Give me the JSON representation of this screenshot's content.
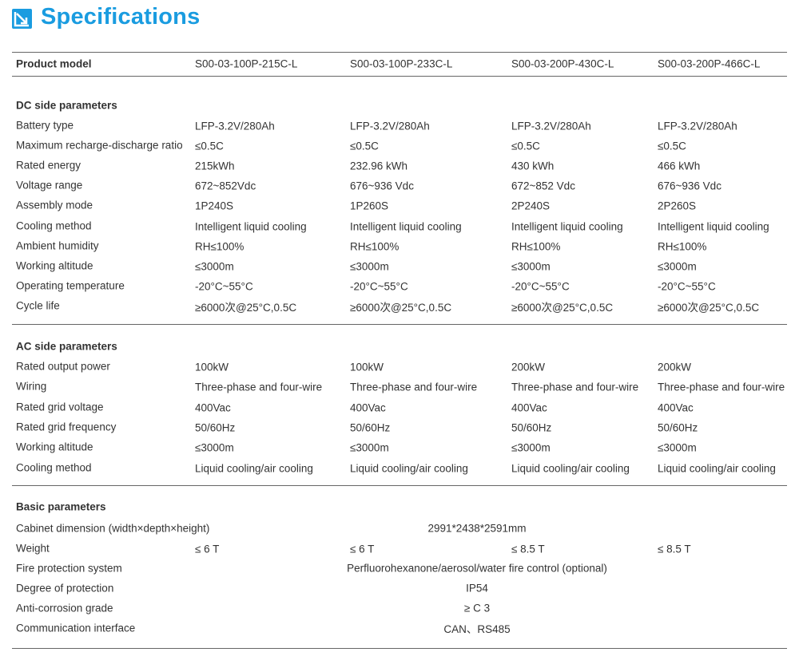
{
  "title": "Specifications",
  "accent_color": "#1a9ce0",
  "logo_icon": "arrow-down-right-icon",
  "header": {
    "label": "Product model",
    "models": [
      "S00-03-100P-215C-L",
      "S00-03-100P-233C-L",
      "S00-03-200P-430C-L",
      "S00-03-200P-466C-L"
    ]
  },
  "sections": [
    {
      "title": "DC side parameters",
      "rows": [
        {
          "label": "Battery type",
          "values": [
            "LFP-3.2V/280Ah",
            "LFP-3.2V/280Ah",
            "LFP-3.2V/280Ah",
            "LFP-3.2V/280Ah"
          ]
        },
        {
          "label": "Maximum recharge-discharge ratio",
          "values": [
            "≤0.5C",
            "≤0.5C",
            "≤0.5C",
            "≤0.5C"
          ]
        },
        {
          "label": "Rated energy",
          "values": [
            "215kWh",
            "232.96 kWh",
            "430 kWh",
            "466 kWh"
          ]
        },
        {
          "label": "Voltage range",
          "values": [
            "672~852Vdc",
            "676~936 Vdc",
            "672~852 Vdc",
            "676~936 Vdc"
          ]
        },
        {
          "label": "Assembly mode",
          "values": [
            "1P240S",
            "1P260S",
            "2P240S",
            "2P260S"
          ]
        },
        {
          "label": "Cooling method",
          "values": [
            "Intelligent liquid cooling",
            "Intelligent liquid cooling",
            "Intelligent liquid cooling",
            "Intelligent liquid cooling"
          ]
        },
        {
          "label": "Ambient humidity",
          "values": [
            "RH≤100%",
            "RH≤100%",
            "RH≤100%",
            "RH≤100%"
          ]
        },
        {
          "label": "Working altitude",
          "values": [
            "≤3000m",
            "≤3000m",
            "≤3000m",
            "≤3000m"
          ]
        },
        {
          "label": "Operating temperature",
          "values": [
            "-20°C~55°C",
            "-20°C~55°C",
            "-20°C~55°C",
            "-20°C~55°C"
          ]
        },
        {
          "label": "Cycle life",
          "values": [
            "≥6000次@25°C,0.5C",
            "≥6000次@25°C,0.5C",
            "≥6000次@25°C,0.5C",
            "≥6000次@25°C,0.5C"
          ]
        }
      ]
    },
    {
      "title": "AC side parameters",
      "rows": [
        {
          "label": "Rated output power",
          "values": [
            "100kW",
            "100kW",
            "200kW",
            "200kW"
          ]
        },
        {
          "label": "Wiring",
          "values": [
            "Three-phase and four-wire",
            "Three-phase and four-wire",
            "Three-phase and four-wire",
            "Three-phase and four-wire"
          ]
        },
        {
          "label": "Rated grid voltage",
          "values": [
            "400Vac",
            "400Vac",
            "400Vac",
            "400Vac"
          ]
        },
        {
          "label": "Rated grid frequency",
          "values": [
            "50/60Hz",
            "50/60Hz",
            "50/60Hz",
            "50/60Hz"
          ]
        },
        {
          "label": "Working altitude",
          "values": [
            "≤3000m",
            "≤3000m",
            "≤3000m",
            "≤3000m"
          ]
        },
        {
          "label": "Cooling method",
          "values": [
            "Liquid cooling/air cooling",
            "Liquid cooling/air cooling",
            "Liquid cooling/air cooling",
            "Liquid cooling/air cooling"
          ]
        }
      ]
    },
    {
      "title": "Basic parameters",
      "rows": [
        {
          "label": "Cabinet dimension (width×depth×height)",
          "span": "2991*2438*2591mm"
        },
        {
          "label": "Weight",
          "values": [
            "≤ 6 T",
            "≤ 6 T",
            "≤ 8.5 T",
            "≤ 8.5 T"
          ]
        },
        {
          "label": "Fire protection system",
          "span": "Perfluorohexanone/aerosol/water fire control (optional)"
        },
        {
          "label": "Degree of protection",
          "span": "IP54"
        },
        {
          "label": "Anti-corrosion grade",
          "span": "≥ C 3"
        },
        {
          "label": "Communication interface",
          "span": "CAN、RS485"
        }
      ]
    }
  ]
}
